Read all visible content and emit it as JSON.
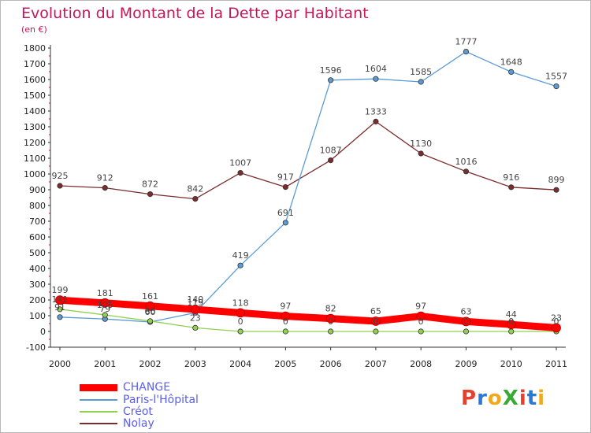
{
  "title": "Evolution du Montant de la Dette par Habitant",
  "unit_label": "(en €)",
  "logo_text": "ProXiti",
  "logo_colors": [
    "#e6402f",
    "#2a79d6",
    "#f0a81c",
    "#3aa935",
    "#e6402f",
    "#2a79d6",
    "#f0a81c"
  ],
  "chart_data": {
    "type": "line",
    "title": "Evolution du Montant de la Dette par Habitant",
    "ylabel": "(en €)",
    "xlabel": "",
    "x": [
      "2000",
      "2001",
      "2002",
      "2003",
      "2004",
      "2005",
      "2006",
      "2007",
      "2008",
      "2009",
      "2010",
      "2011"
    ],
    "ylim": [
      -100,
      1800
    ],
    "yticks": [
      -100,
      0,
      100,
      200,
      300,
      400,
      500,
      600,
      700,
      800,
      900,
      1000,
      1100,
      1200,
      1300,
      1400,
      1500,
      1600,
      1700,
      1800
    ],
    "grid": false,
    "legend_position": "bottom-left",
    "series": [
      {
        "name": "CHANGE",
        "color": "#ff0000",
        "values": [
          199,
          181,
          161,
          140,
          118,
          97,
          82,
          65,
          97,
          63,
          44,
          23
        ],
        "labels": [
          "199",
          "181",
          "161",
          "140",
          "118",
          "97",
          "82",
          "65",
          "97",
          "63",
          "44",
          "23"
        ]
      },
      {
        "name": "Paris-l'Hôpital",
        "color": "#5b9bd5",
        "values": [
          91,
          79,
          60,
          119,
          419,
          691,
          1596,
          1604,
          1585,
          1777,
          1648,
          1557
        ],
        "labels": [
          "91",
          "79",
          "60",
          "119",
          "419",
          "691",
          "1596",
          "1604",
          "1585",
          "1777",
          "1648",
          "1557"
        ]
      },
      {
        "name": "Créot",
        "color": "#92d050",
        "values": [
          141,
          105,
          66,
          23,
          0,
          0,
          0,
          0,
          0,
          0,
          0,
          0
        ],
        "labels": [
          "141",
          "105",
          "66",
          "23",
          "0",
          "0",
          "0",
          "0",
          "0",
          "0",
          "0",
          "0"
        ]
      },
      {
        "name": "Nolay",
        "color": "#7b2c2c",
        "values": [
          925,
          912,
          872,
          842,
          1007,
          917,
          1087,
          1333,
          1130,
          1016,
          916,
          899
        ],
        "labels": [
          "925",
          "912",
          "872",
          "842",
          "1007",
          "917",
          "1087",
          "1333",
          "1130",
          "1016",
          "916",
          "899"
        ]
      }
    ]
  }
}
